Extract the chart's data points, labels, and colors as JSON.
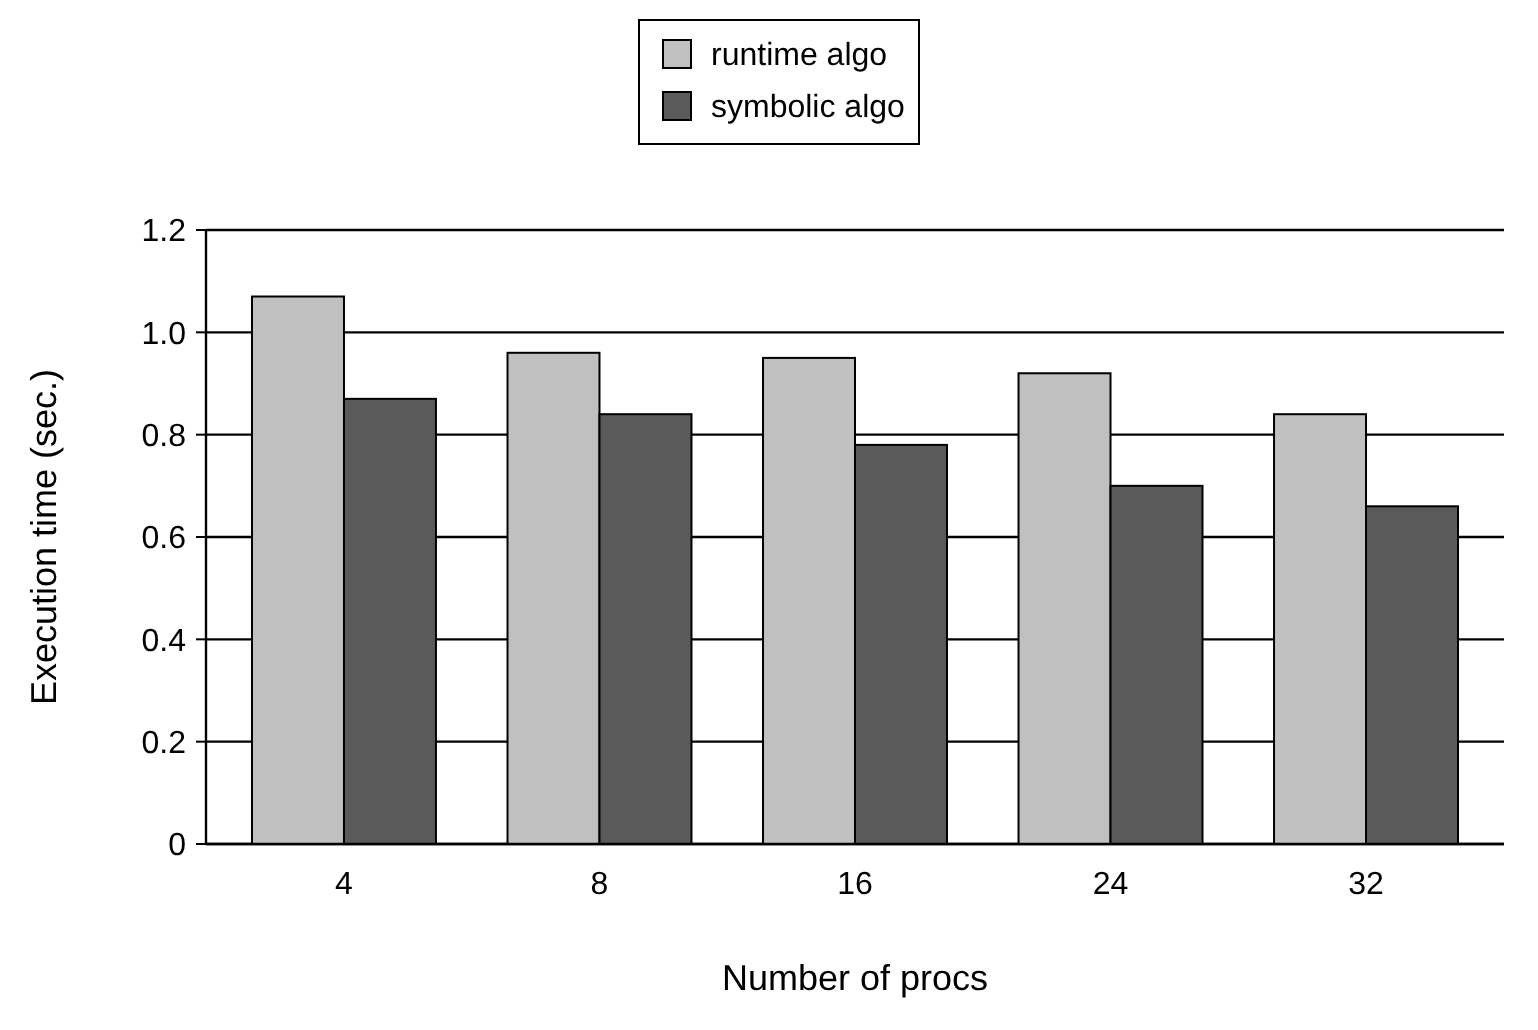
{
  "chart_data": {
    "type": "bar",
    "xlabel": "Number of procs",
    "ylabel": "Execution time (sec.)",
    "categories": [
      "4",
      "8",
      "16",
      "24",
      "32"
    ],
    "series": [
      {
        "name": "runtime algo",
        "color": "#c0c0c0",
        "values": [
          1.07,
          0.96,
          0.95,
          0.92,
          0.84
        ]
      },
      {
        "name": "symbolic algo",
        "color": "#5a5a5a",
        "values": [
          0.87,
          0.84,
          0.78,
          0.7,
          0.66
        ]
      }
    ],
    "ylim": [
      0,
      1.2
    ],
    "yticks": [
      {
        "value": 0,
        "label": "0"
      },
      {
        "value": 0.2,
        "label": "0.2"
      },
      {
        "value": 0.4,
        "label": "0.4"
      },
      {
        "value": 0.6,
        "label": "0.6"
      },
      {
        "value": 0.8,
        "label": "0.8"
      },
      {
        "value": 1.0,
        "label": "1.0"
      },
      {
        "value": 1.2,
        "label": "1.2"
      }
    ],
    "grid": "y",
    "legend": "top"
  }
}
